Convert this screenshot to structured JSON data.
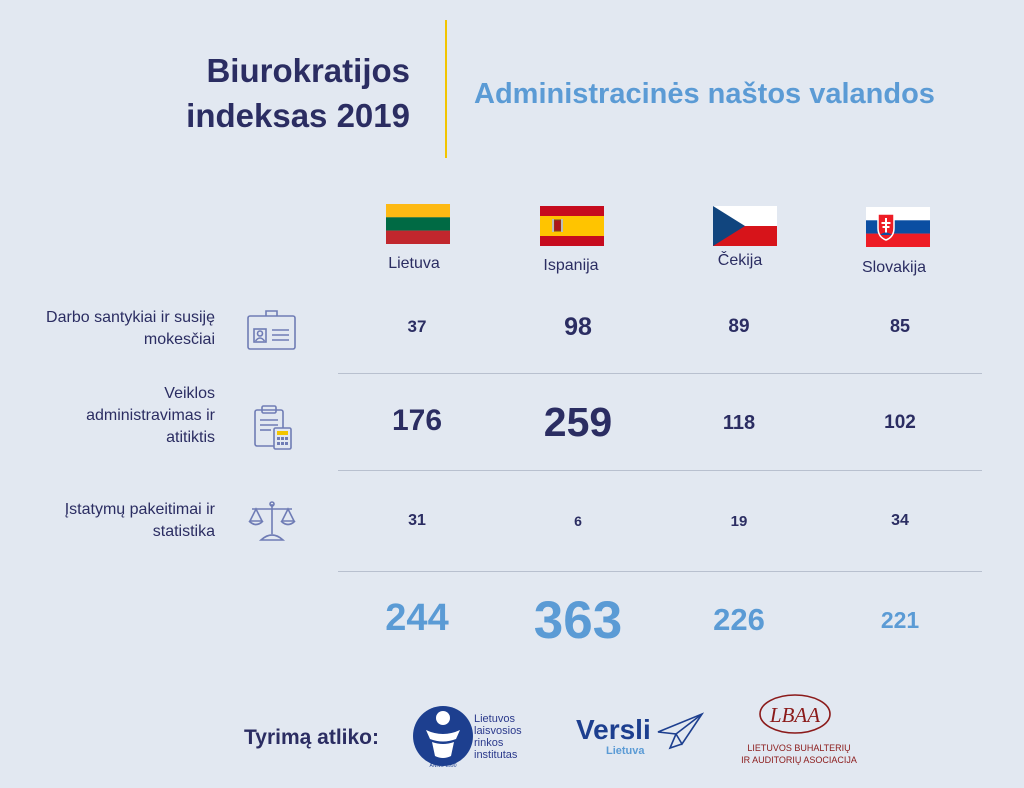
{
  "title_line1": "Biurokratijos",
  "title_line2": "indeksas 2019",
  "subtitle": "Administracinės naštos valandos",
  "countries": [
    "Lietuva",
    "Ispanija",
    "Čekija",
    "Slovakija"
  ],
  "rows": [
    {
      "label_lines": [
        "Darbo santykiai ir susiję",
        "mokesčiai"
      ],
      "icon": "id-card-icon",
      "values": [
        "37",
        "98",
        "89",
        "85"
      ]
    },
    {
      "label_lines": [
        "Veiklos",
        "administravimas ir",
        "atitiktis"
      ],
      "icon": "clipboard-calculator-icon",
      "values": [
        "176",
        "259",
        "118",
        "102"
      ]
    },
    {
      "label_lines": [
        "Įstatymų pakeitimai ir",
        "statistika"
      ],
      "icon": "scales-icon",
      "values": [
        "31",
        "6",
        "19",
        "34"
      ]
    }
  ],
  "totals": [
    "244",
    "363",
    "226",
    "221"
  ],
  "footer": {
    "label": "Tyrimą atliko:",
    "llri_lines": [
      "Lietuvos",
      "laisvosios",
      "rinkos",
      "institutas"
    ],
    "llri_anno": "ANNO 1990",
    "versli": "Versli",
    "versli_sub": "Lietuva",
    "lbaa_mark": "LBAA",
    "lbaa_lines": [
      "LIETUVOS BUHALTERIŲ",
      "IR AUDITORIŲ ASOCIACIJA"
    ]
  },
  "colors": {
    "navy": "#2b2d62",
    "light_blue": "#5b9bd5",
    "accent_yellow": "#f2c500",
    "background": "#e2e8f1"
  }
}
